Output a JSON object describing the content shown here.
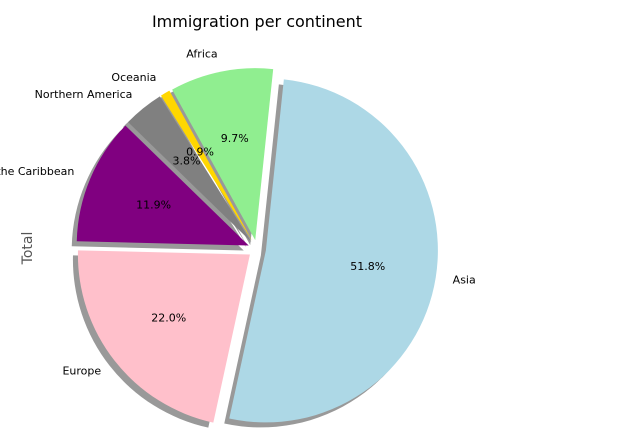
{
  "chart_data": {
    "type": "pie",
    "title": "Immigration per continent",
    "ylabel": "Total",
    "shadow": true,
    "exploded": true,
    "slices": [
      {
        "label": "Africa",
        "pct_label": "9.7%",
        "value": 9.7,
        "color": "#90ee90"
      },
      {
        "label": "Oceania",
        "pct_label": "0.9%",
        "value": 0.9,
        "color": "#ffd700"
      },
      {
        "label": "Northern America",
        "pct_label": "3.8%",
        "value": 3.8,
        "color": "#808080"
      },
      {
        "label": "Latin America and the Caribbean",
        "pct_label": "11.9%",
        "value": 11.9,
        "color": "#800080"
      },
      {
        "label": "Europe",
        "pct_label": "22.0%",
        "value": 22.0,
        "color": "#ffc0cb"
      },
      {
        "label": "Asia",
        "pct_label": "51.8%",
        "value": 51.8,
        "color": "#add8e6"
      }
    ]
  }
}
